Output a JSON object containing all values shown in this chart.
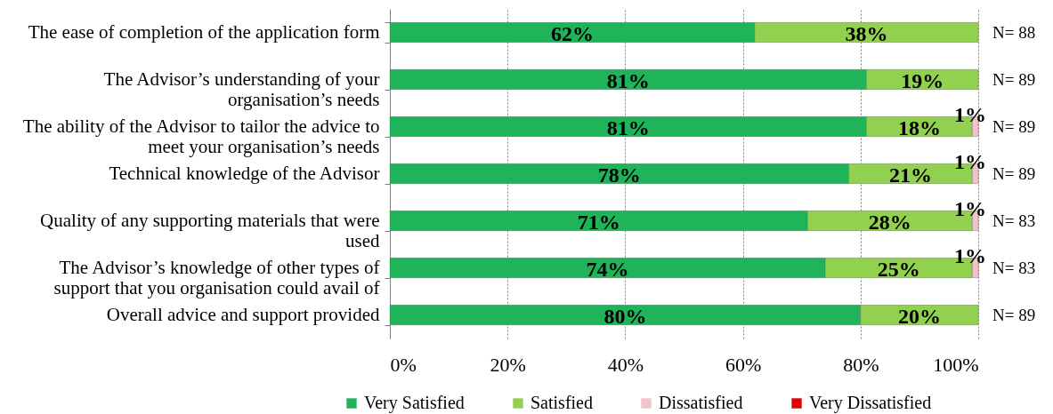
{
  "chart_data": {
    "type": "bar",
    "orientation": "horizontal",
    "stacked": true,
    "categories": [
      "The ease of completion of the application form",
      "The Advisor’s understanding of your organisation’s needs",
      "The ability of the Advisor to tailor the advice to meet your organisation’s needs",
      "Technical knowledge of the Advisor",
      "Quality of any supporting materials that were used",
      "The Advisor’s knowledge of other types of support that you organisation could avail of",
      "Overall advice and support provided"
    ],
    "series": [
      {
        "name": "Very Satisfied",
        "color": "#1fb35a",
        "values": [
          62,
          81,
          81,
          78,
          71,
          74,
          80
        ],
        "value_labels": [
          "62%",
          "81%",
          "81%",
          "78%",
          "71%",
          "74%",
          "80%"
        ]
      },
      {
        "name": "Satisfied",
        "color": "#92d050",
        "values": [
          38,
          19,
          18,
          21,
          28,
          25,
          20
        ],
        "value_labels": [
          "38%",
          "19%",
          "18%",
          "21%",
          "28%",
          "25%",
          "20%"
        ]
      },
      {
        "name": "Dissatisfied",
        "color": "#f2c4c9",
        "values": [
          null,
          null,
          1,
          1,
          1,
          1,
          null
        ],
        "value_labels": [
          null,
          null,
          "1%",
          "1%",
          "1%",
          "1%",
          null
        ]
      },
      {
        "name": "Very Dissatisfied",
        "color": "#e00000",
        "values": [
          null,
          null,
          null,
          null,
          null,
          null,
          null
        ]
      }
    ],
    "xlim": [
      0,
      100
    ],
    "xticks": [
      {
        "value": 0,
        "label": "0%"
      },
      {
        "value": 20,
        "label": "20%"
      },
      {
        "value": 40,
        "label": "40%"
      },
      {
        "value": 60,
        "label": "60%"
      },
      {
        "value": 80,
        "label": "80%"
      },
      {
        "value": 100,
        "label": "100%"
      }
    ],
    "grid": "x",
    "legend": "bottom",
    "annotations": [
      "N= 88",
      "N= 89",
      "N= 89",
      "N= 89",
      "N= 83",
      "N= 83",
      "N= 89"
    ]
  }
}
